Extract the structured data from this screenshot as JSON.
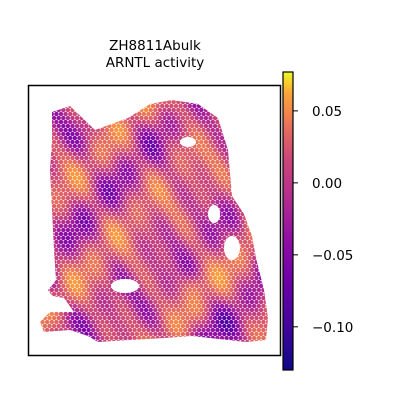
{
  "chart_data": {
    "type": "heatmap",
    "title_lines": [
      "ZH8811Abulk",
      "ARNTL activity"
    ],
    "xlabel": "",
    "ylabel": "",
    "colormap": "plasma",
    "colorbar": {
      "range": [
        -0.13,
        0.077
      ],
      "ticks": [
        0.05,
        0.0,
        -0.05,
        -0.1
      ],
      "tick_labels": [
        "0.05",
        "0.00",
        "−0.05",
        "−0.10"
      ]
    },
    "grid": false,
    "legend": "none"
  }
}
